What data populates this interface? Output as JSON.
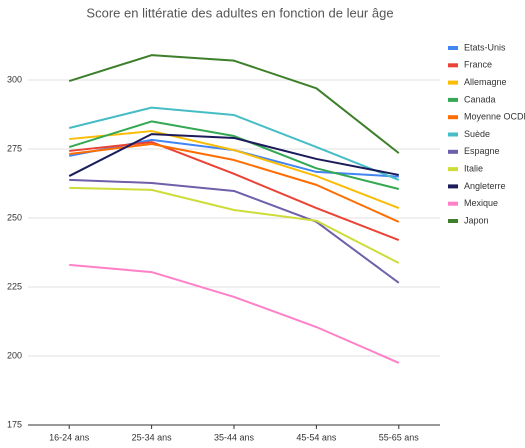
{
  "chart_data": {
    "type": "line",
    "title": "Score en littératie des adultes en fonction de leur âge",
    "categories": [
      "16-24 ans",
      "25-34 ans",
      "35-44 ans",
      "45-54 ans",
      "55-65 ans"
    ],
    "ylim": [
      175,
      315
    ],
    "yticks": [
      175,
      200,
      225,
      250,
      275,
      300
    ],
    "grid": true,
    "legend": "right",
    "series": [
      {
        "name": "Etats-Unis",
        "color": "#4285f4",
        "values": [
          272.5,
          278.3,
          274.6,
          266.7,
          265
        ]
      },
      {
        "name": "France",
        "color": "#ea4335",
        "values": [
          274.3,
          277.5,
          266,
          253.6,
          242
        ]
      },
      {
        "name": "Allemagne",
        "color": "#fbbc04",
        "values": [
          278.6,
          281.5,
          274.6,
          265.2,
          253.6
        ]
      },
      {
        "name": "Canada",
        "color": "#34a853",
        "values": [
          275.7,
          285,
          279.7,
          268,
          260.5
        ]
      },
      {
        "name": "Moyenne OCDE",
        "color": "#ff6d01",
        "values": [
          273.2,
          276.8,
          271,
          262,
          248.6
        ]
      },
      {
        "name": "Suède",
        "color": "#46bdc6",
        "values": [
          282.6,
          290,
          287.3,
          275.7,
          263.8
        ]
      },
      {
        "name": "Espagne",
        "color": "#6f5faa",
        "values": [
          263.8,
          262.7,
          259.8,
          248.6,
          226.5
        ]
      },
      {
        "name": "Italie",
        "color": "#cddc39",
        "values": [
          260.9,
          260.2,
          252.9,
          249,
          233.7
        ]
      },
      {
        "name": "Angleterre",
        "color": "#1c1c5c",
        "values": [
          265.2,
          280.4,
          279,
          271.4,
          265.6
        ]
      },
      {
        "name": "Mexique",
        "color": "#ff80c8",
        "values": [
          233,
          230.4,
          221.4,
          210.5,
          197.5
        ]
      },
      {
        "name": "Japon",
        "color": "#3d7f2a",
        "values": [
          299.6,
          309,
          307,
          297,
          273.5
        ]
      }
    ]
  }
}
